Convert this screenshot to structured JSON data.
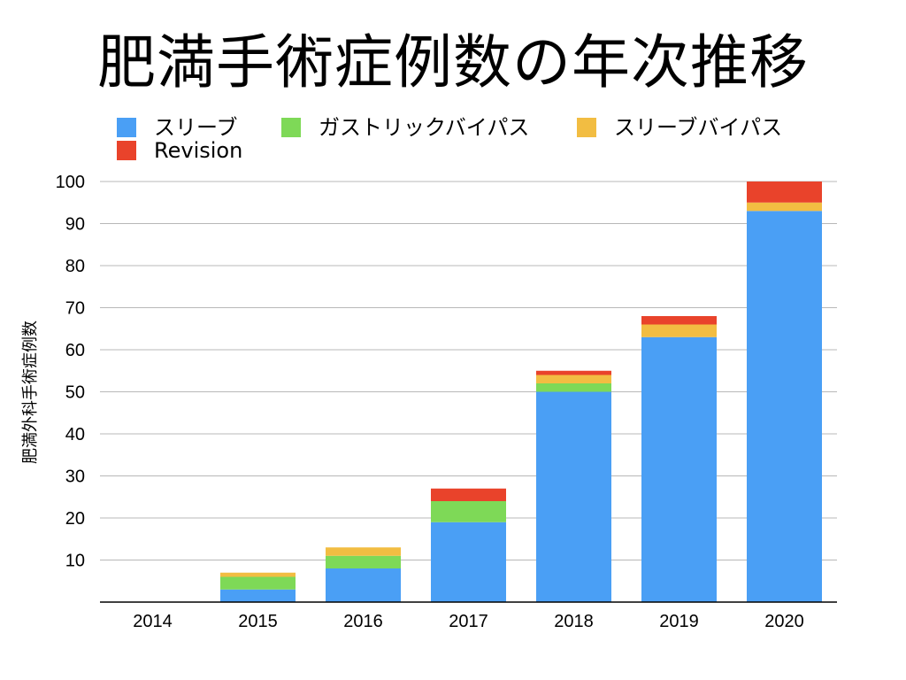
{
  "chart_data": {
    "type": "bar",
    "stacked": true,
    "title": "肥満手術症例数の年次推移",
    "ylabel": "肥満外科手術症例数",
    "xlabel": "",
    "categories": [
      "2014",
      "2015",
      "2016",
      "2017",
      "2018",
      "2019",
      "2020"
    ],
    "ylim": [
      0,
      100
    ],
    "yticks": [
      "10",
      "20",
      "30",
      "40",
      "50",
      "60",
      "70",
      "80",
      "90",
      "100"
    ],
    "grid": true,
    "legend_position": "top",
    "series": [
      {
        "name": "スリーブ",
        "color": "#4A9FF5",
        "values": [
          0,
          3,
          8,
          19,
          50,
          63,
          93
        ]
      },
      {
        "name": "ガストリックバイパス",
        "color": "#7ED957",
        "values": [
          0,
          3,
          3,
          5,
          2,
          0,
          0
        ]
      },
      {
        "name": "スリーブバイパス",
        "color": "#F2BD42",
        "values": [
          0,
          1,
          2,
          0,
          2,
          3,
          2
        ]
      },
      {
        "name": "Revision",
        "color": "#E9432B",
        "values": [
          0,
          0,
          0,
          3,
          1,
          2,
          5
        ]
      }
    ]
  }
}
